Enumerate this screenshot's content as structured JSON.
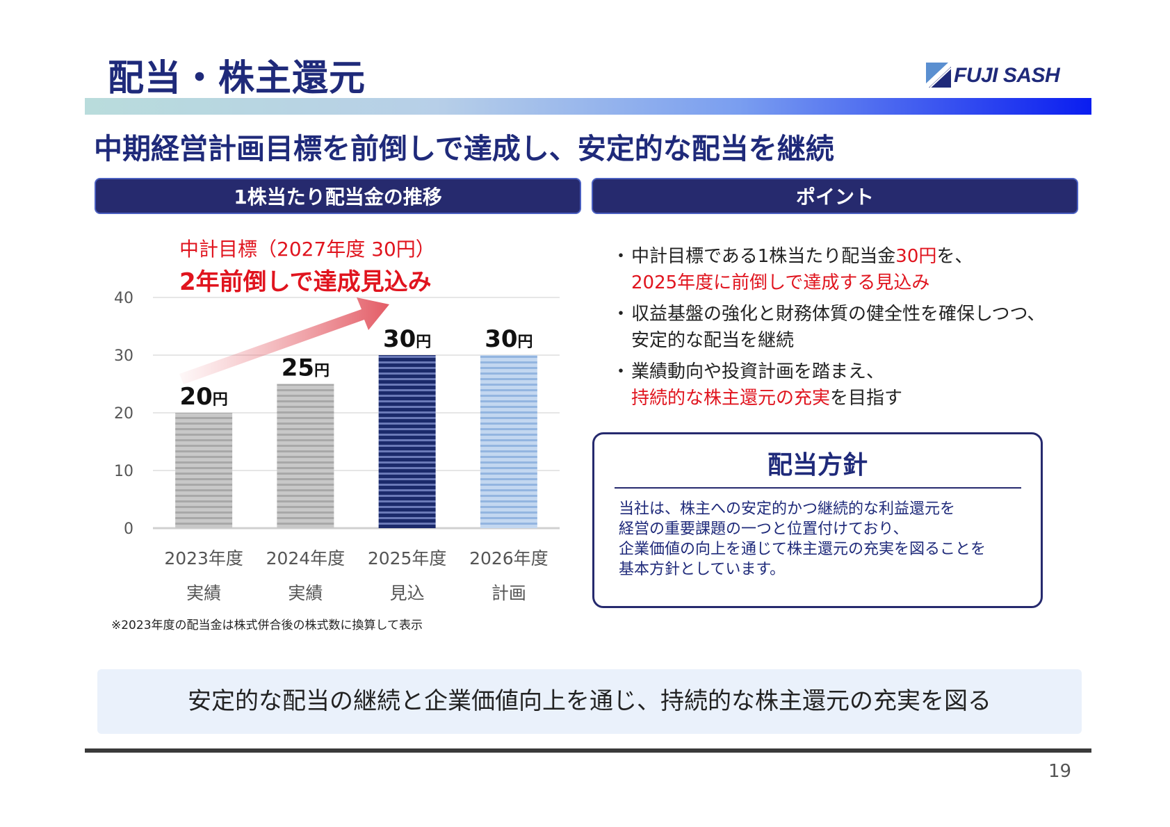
{
  "header": {
    "title": "配当・株主還元",
    "logo_text": "FUJI SASH"
  },
  "subtitle": "中期経営計画目標を前倒しで達成し、安定的な配当を継続",
  "sections": {
    "left_title": "1株当たり配当金の推移",
    "right_title": "ポイント"
  },
  "target": {
    "line1": "中計目標（2027年度 30円）",
    "line2": "2年前倒しで達成見込み"
  },
  "chart_data": {
    "type": "bar",
    "categories": [
      "2023年度",
      "2024年度",
      "2025年度",
      "2026年度"
    ],
    "sublabels": [
      "実績",
      "実績",
      "見込",
      "計画"
    ],
    "values": [
      20,
      25,
      30,
      30
    ],
    "value_labels": [
      "20",
      "25",
      "30",
      "30"
    ],
    "unit": "円",
    "ylim": [
      0,
      40
    ],
    "yticks": [
      "0",
      "10",
      "20",
      "30",
      "40"
    ],
    "grid": true,
    "colors": [
      "#bdbdbd",
      "#bdbdbd",
      "#1b2a6b",
      "#a9c6ea"
    ]
  },
  "footnote": "※2023年度の配当金は株式併合後の株式数に換算して表示",
  "points": [
    {
      "dot": "・",
      "a": "中計目標である1株当たり配当金",
      "b": "30円",
      "c": "を、",
      "d": "2025年度に前倒しで達成する見込み",
      "e": ""
    },
    {
      "dot": "・",
      "a": "収益基盤の強化と財務体質の健全性を確保しつつ、",
      "b": "",
      "c": "",
      "d": "",
      "e": "安定的な配当を継続"
    },
    {
      "dot": "・",
      "a": "業績動向や投資計画を踏まえ、",
      "b": "",
      "c": "",
      "d": "持続的な株主還元の充実",
      "e": "を目指す"
    }
  ],
  "policy": {
    "title": "配当方針",
    "lines": [
      "当社は、株主への安定的かつ継続的な利益還元を",
      "経営の重要課題の一つと位置付けており、",
      "企業価値の向上を通じて株主還元の充実を図ることを",
      "基本方針としています。"
    ]
  },
  "banner": "安定的な配当の継続と企業価値向上を通じ、持続的な株主還元の充実を図る",
  "page_number": "19",
  "colors": {
    "navy": "#1f2a7a",
    "accent_red": "#e0141e"
  }
}
